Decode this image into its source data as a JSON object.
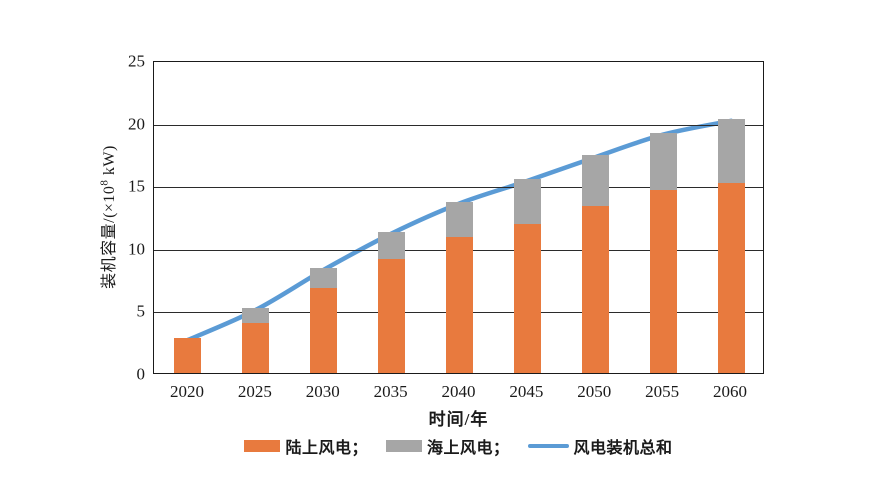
{
  "chart_data": {
    "type": "bar",
    "subtype": "stacked-bar-with-line",
    "title": "",
    "xlabel": "时间/年",
    "ylabel": "装机容量/(×10⁸ kW)",
    "ylabel_parts": {
      "prefix": "装机容量/(×10",
      "sup": "8",
      "suffix": " kW)"
    },
    "categories": [
      "2020",
      "2025",
      "2030",
      "2035",
      "2040",
      "2045",
      "2050",
      "2055",
      "2060"
    ],
    "series": [
      {
        "name": "陆上风电",
        "type": "bar",
        "stack": "wind",
        "color": "#e87a3e",
        "values": [
          2.8,
          4.0,
          6.8,
          9.1,
          10.9,
          11.9,
          13.3,
          14.6,
          15.2
        ]
      },
      {
        "name": "海上风电",
        "type": "bar",
        "stack": "wind",
        "color": "#a6a6a6",
        "values": [
          0,
          1.2,
          1.6,
          2.2,
          2.8,
          3.6,
          4.1,
          4.6,
          5.1
        ]
      },
      {
        "name": "风电装机总和",
        "type": "line",
        "color": "#5b9bd5",
        "values": [
          2.8,
          5.2,
          8.4,
          11.3,
          13.7,
          15.5,
          17.4,
          19.2,
          20.3
        ]
      }
    ],
    "legend": [
      {
        "label": "陆上风电；",
        "swatch": "rect",
        "color": "#e87a3e"
      },
      {
        "label": "海上风电；",
        "swatch": "rect",
        "color": "#a6a6a6"
      },
      {
        "label": "风电装机总和",
        "swatch": "line",
        "color": "#5b9bd5"
      }
    ],
    "legend_position": "bottom",
    "ylim": [
      0,
      25
    ],
    "yticks": [
      0,
      5,
      10,
      15,
      20,
      25
    ],
    "grid": true
  }
}
